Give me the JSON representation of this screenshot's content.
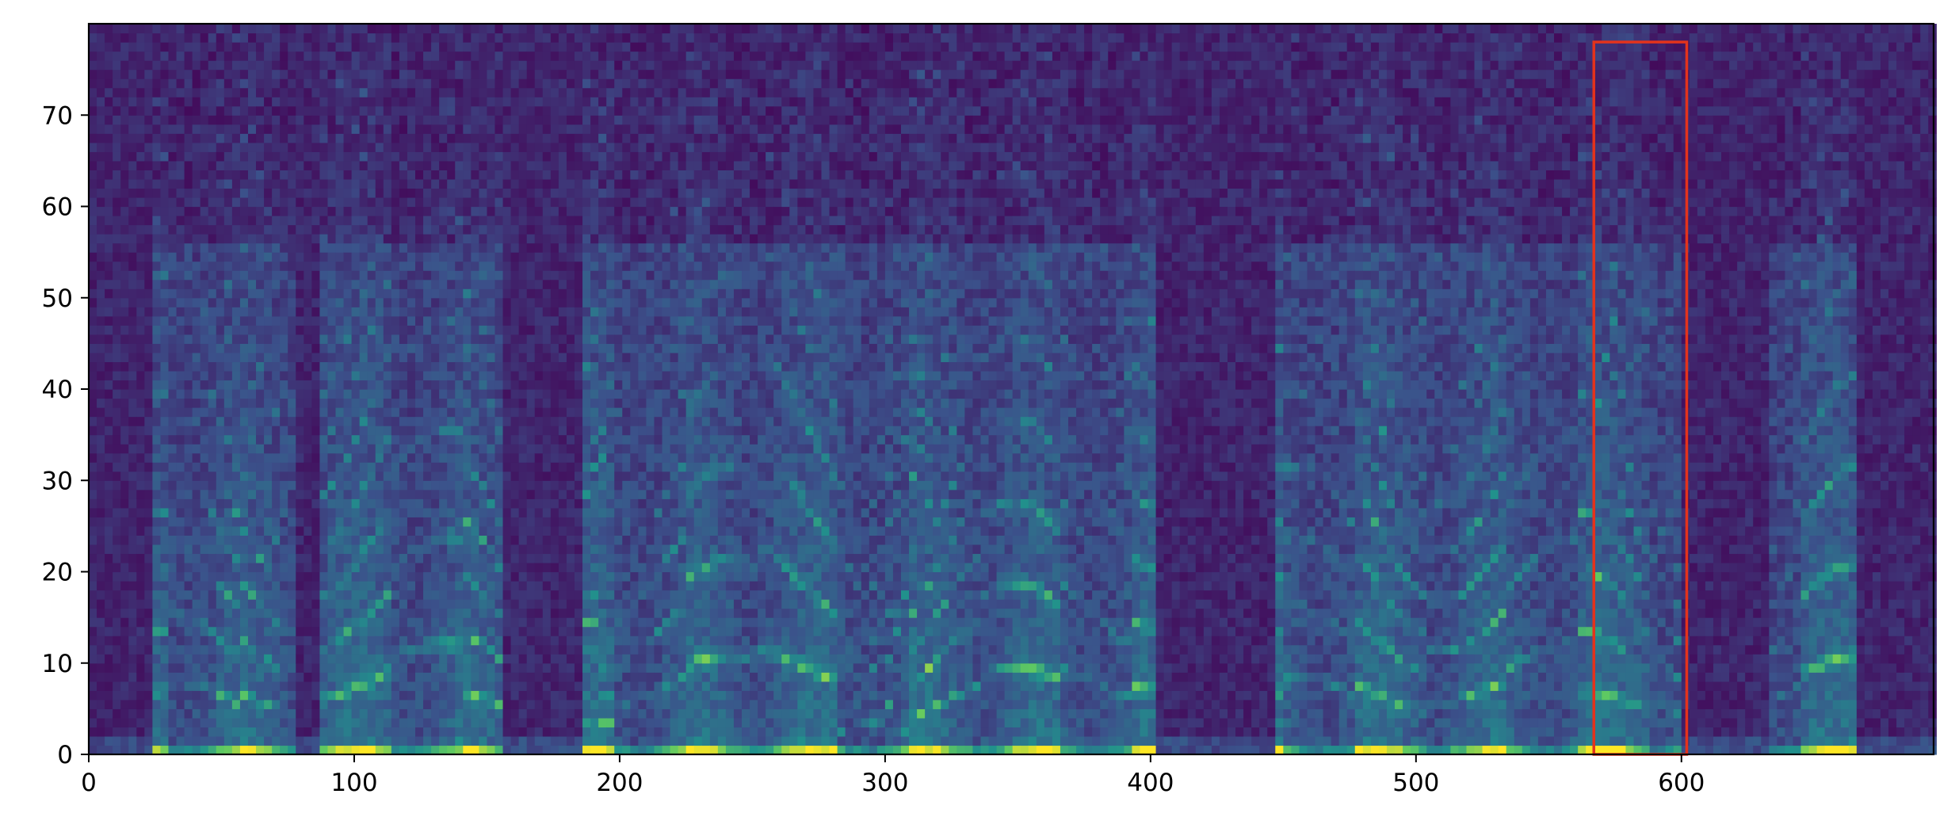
{
  "chart_data": {
    "type": "heatmap",
    "title": "",
    "xlabel": "",
    "ylabel": "",
    "xlim": [
      0,
      695
    ],
    "ylim": [
      0,
      80
    ],
    "x_ticks": [
      0,
      100,
      200,
      300,
      400,
      500,
      600
    ],
    "y_ticks": [
      0,
      10,
      20,
      30,
      40,
      50,
      60,
      70
    ],
    "x_tick_labels": [
      "0",
      "100",
      "200",
      "300",
      "400",
      "500",
      "600"
    ],
    "y_tick_labels": [
      "0",
      "10",
      "20",
      "30",
      "40",
      "50",
      "60",
      "70"
    ],
    "colormap": "viridis",
    "colormap_stops": [
      "#440154",
      "#3b528b",
      "#21918c",
      "#5ec962",
      "#fde725"
    ],
    "silent_regions": [
      [
        0,
        22
      ],
      [
        78,
        84
      ],
      [
        155,
        185
      ],
      [
        400,
        445
      ],
      [
        600,
        632
      ],
      [
        665,
        695
      ]
    ],
    "highlight_box": {
      "x": [
        567,
        602
      ],
      "y": [
        0,
        78
      ],
      "color": "#e3331c"
    },
    "grid": false,
    "legend": "none"
  }
}
